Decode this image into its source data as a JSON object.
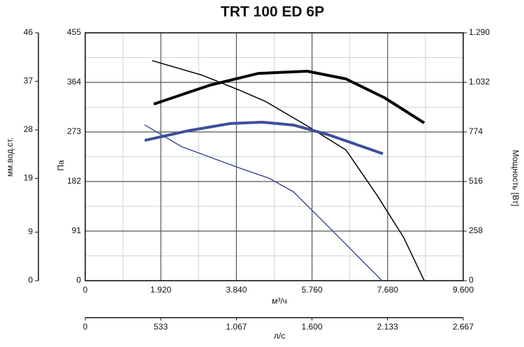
{
  "chart_data": {
    "type": "line",
    "title": "TRT 100 ED 6P",
    "xlabel": "м³/ч",
    "ylabel": "Па",
    "y2label": "Мощность [Вт]",
    "y3label": "мм.вод.ст.",
    "x2label": "л/с",
    "xlim": [
      0,
      9600
    ],
    "xticks": [
      0,
      {
        "value": 1920,
        "label": "1.920"
      },
      {
        "value": 3840,
        "label": "3.840"
      },
      {
        "value": 5760,
        "label": "5.760"
      },
      {
        "value": 7680,
        "label": "7.680"
      },
      {
        "value": 9600,
        "label": "9.600"
      }
    ],
    "minor_xticks": [
      960,
      2880,
      4800,
      6720,
      8640
    ],
    "ylim": [
      0,
      455
    ],
    "yticks": [
      0,
      91,
      182,
      273,
      364,
      455
    ],
    "minor_yticks": [
      45.5,
      136.5,
      227.5,
      318.5,
      409.5
    ],
    "y2lim": [
      0,
      1290
    ],
    "y2ticks": [
      0,
      258,
      516,
      774,
      {
        "value": 1032,
        "label": "1.032"
      },
      {
        "value": 1290,
        "label": "1.290"
      }
    ],
    "y3lim": [
      0,
      46
    ],
    "y3ticks": [
      0,
      9,
      19,
      28,
      37,
      46
    ],
    "x2lim": [
      0,
      2667
    ],
    "x2ticks": [
      0,
      533,
      {
        "value": 1067,
        "label": "1.067"
      },
      {
        "value": 1600,
        "label": "1.600"
      },
      {
        "value": 2133,
        "label": "2.133"
      },
      {
        "value": 2667,
        "label": "2.667"
      }
    ],
    "grid": true,
    "series": [
      {
        "color": "#000000",
        "width": 1.5,
        "x": [
          1700,
          2980,
          3870,
          4580,
          5640,
          6620,
          7420,
          8090,
          8610
        ],
        "values": [
          404,
          377,
          351,
          329,
          284,
          240,
          156,
          79,
          0
        ]
      },
      {
        "color": "#3d4f9a",
        "width": 1.5,
        "x": [
          1510,
          2450,
          3870,
          4670,
          5290,
          6000,
          6890,
          7540
        ],
        "values": [
          286,
          246,
          208,
          188,
          163,
          112,
          47,
          0
        ]
      },
      {
        "color": "#000000",
        "width": 4,
        "axis": "y2",
        "x": [
          1740,
          3160,
          4400,
          5640,
          6620,
          7600,
          8610
        ],
        "values": [
          919,
          1017,
          1079,
          1090,
          1050,
          952,
          821
        ]
      },
      {
        "color": "#3d4f9a",
        "width": 4,
        "axis": "y2",
        "x": [
          1510,
          2630,
          3690,
          4490,
          5290,
          6180,
          7560
        ],
        "values": [
          730,
          781,
          818,
          825,
          810,
          759,
          661
        ]
      }
    ]
  }
}
